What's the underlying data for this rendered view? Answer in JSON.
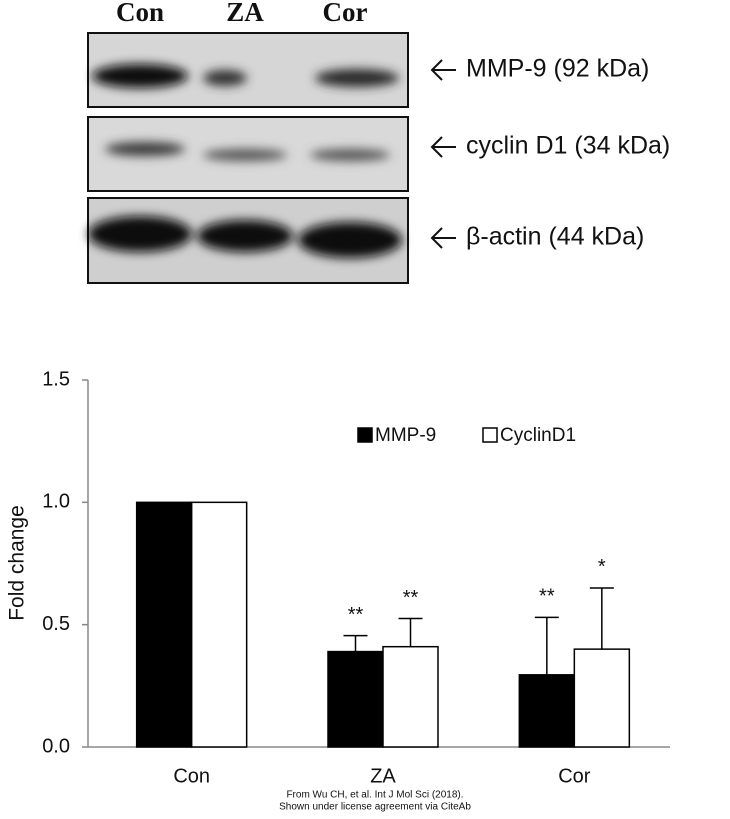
{
  "blot": {
    "lanes": [
      "Con",
      "ZA",
      "Cor"
    ],
    "rows": [
      "MMP-9 (92 kDa)",
      "cyclin D1 (34 kDa)",
      "β-actin (44 kDa)"
    ]
  },
  "chart_data": {
    "type": "bar",
    "ylabel": "Fold change",
    "categories": [
      "Con",
      "ZA",
      "Cor"
    ],
    "series": [
      {
        "name": "MMP-9",
        "color": "#000000",
        "values": [
          1.0,
          0.39,
          0.295
        ],
        "errors": [
          null,
          0.065,
          0.235
        ],
        "annotations": [
          null,
          "**",
          "**"
        ]
      },
      {
        "name": "CyclinD1",
        "color": "#ffffff",
        "values": [
          1.0,
          0.41,
          0.4
        ],
        "errors": [
          null,
          0.115,
          0.25
        ],
        "annotations": [
          null,
          "**",
          "*"
        ]
      }
    ],
    "ylim": [
      0,
      1.5
    ],
    "yticks": [
      {
        "value": 0,
        "label": "0.0"
      },
      {
        "value": 0.5,
        "label": "0.5"
      },
      {
        "value": 1.0,
        "label": "1.0"
      },
      {
        "value": 1.5,
        "label": "1.5"
      }
    ],
    "grid": false
  },
  "caption": [
    "From Wu CH, et al. Int J Mol Sci (2018).",
    "Shown under license agreement via CiteAb"
  ]
}
